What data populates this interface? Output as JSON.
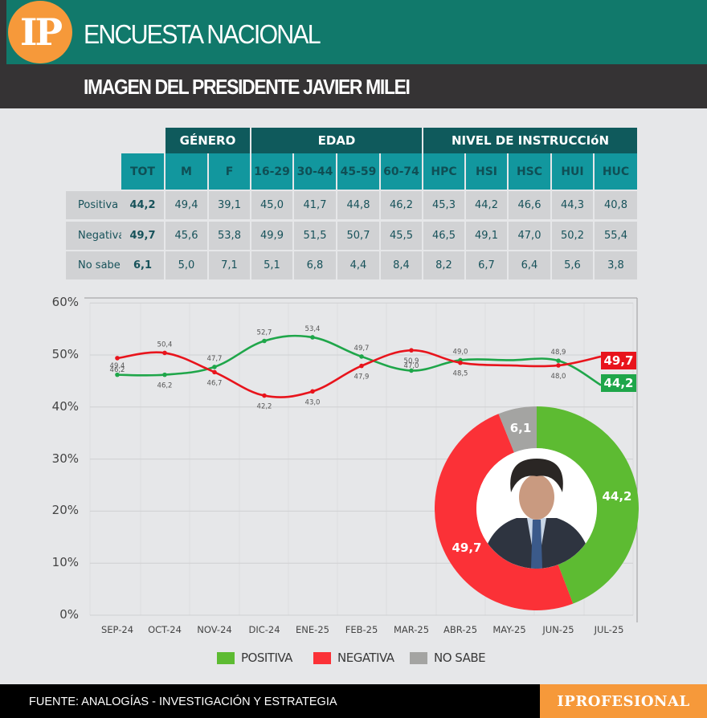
{
  "header": {
    "logo_text": "IP",
    "title": "ENCUESTA NACIONAL",
    "subtitle": "IMAGEN DEL PRESIDENTE JAVIER MILEI",
    "colors": {
      "teal": "#11796b",
      "dark": "#353334",
      "orange": "#f6993a"
    }
  },
  "table": {
    "groups": [
      {
        "label": "GÉNERO",
        "span": [
          "M",
          "F"
        ]
      },
      {
        "label": "EDAD",
        "span": [
          "16-29",
          "30-44",
          "45-59",
          "60-74"
        ]
      },
      {
        "label": "NIVEL DE INSTRUCCIóN",
        "span": [
          "HPC",
          "HSI",
          "HSC",
          "HUI",
          "HUC"
        ]
      }
    ],
    "columns": [
      "TOT",
      "M",
      "F",
      "16-29",
      "30-44",
      "45-59",
      "60-74",
      "HPC",
      "HSI",
      "HSC",
      "HUI",
      "HUC"
    ],
    "rows": [
      {
        "label": "Positiva",
        "values": [
          "44,2",
          "49,4",
          "39,1",
          "45,0",
          "41,7",
          "44,8",
          "46,2",
          "45,3",
          "44,2",
          "46,6",
          "44,3",
          "40,8"
        ]
      },
      {
        "label": "Negativa",
        "values": [
          "49,7",
          "45,6",
          "53,8",
          "49,9",
          "51,5",
          "50,7",
          "45,5",
          "46,5",
          "49,1",
          "47,0",
          "50,2",
          "55,4"
        ]
      },
      {
        "label": "No sabe",
        "values": [
          "6,1",
          "5,0",
          "7,1",
          "5,1",
          "6,8",
          "4,4",
          "8,4",
          "8,2",
          "6,7",
          "6,4",
          "5,6",
          "3,8"
        ]
      }
    ]
  },
  "chart_data": [
    {
      "type": "line",
      "title": "",
      "xlabel": "",
      "ylabel": "",
      "ylim": [
        0,
        60
      ],
      "y_ticks": [
        "0%",
        "10%",
        "20%",
        "30%",
        "40%",
        "50%",
        "60%"
      ],
      "grid": true,
      "categories": [
        "SEP-24",
        "OCT-24",
        "NOV-24",
        "DIC-24",
        "ENE-25",
        "FEB-25",
        "MAR-25",
        "ABR-25",
        "MAY-25",
        "JUN-25",
        "JUL-25"
      ],
      "series": [
        {
          "name": "POSITIVA",
          "color": "#1fa64a",
          "values": [
            46.2,
            46.2,
            47.7,
            52.7,
            53.4,
            49.7,
            47.0,
            49.0,
            49.0,
            48.9,
            44.2
          ],
          "labels": [
            "46,2",
            "46,2",
            "47,7",
            "52,7",
            "53,4",
            "49,7",
            "47,0",
            "49,0",
            "",
            "48,9",
            "44,2"
          ]
        },
        {
          "name": "NEGATIVA",
          "color": "#e8141c",
          "values": [
            49.4,
            50.4,
            46.7,
            42.2,
            43.0,
            47.9,
            50.9,
            48.5,
            48.0,
            48.0,
            49.7
          ],
          "labels": [
            "49,4",
            "50,4",
            "46,7",
            "42,2",
            "43,0",
            "47,9",
            "50,9",
            "48,5",
            "",
            "48,0",
            "49,7"
          ]
        }
      ],
      "legend_position": "bottom"
    },
    {
      "type": "pie",
      "variant": "donut",
      "categories": [
        "POSITIVA",
        "NEGATIVA",
        "NO SABE"
      ],
      "values": [
        44.2,
        49.7,
        6.1
      ],
      "labels": [
        "44,2",
        "49,7",
        "6,1"
      ],
      "colors": [
        "#5dbb32",
        "#fb3137",
        "#a4a4a2"
      ]
    }
  ],
  "end_labels": {
    "negativa": "49,7",
    "positiva": "44,2"
  },
  "legend": [
    {
      "label": "POSITIVA",
      "color": "#5dbb32"
    },
    {
      "label": "NEGATIVA",
      "color": "#fb3137"
    },
    {
      "label": "NO SABE",
      "color": "#a4a4a2"
    }
  ],
  "footer": {
    "source": "FUENTE: ANALOGÍAS - INVESTIGACIÓN Y ESTRATEGIA",
    "brand": "IPROFESIONAL"
  }
}
